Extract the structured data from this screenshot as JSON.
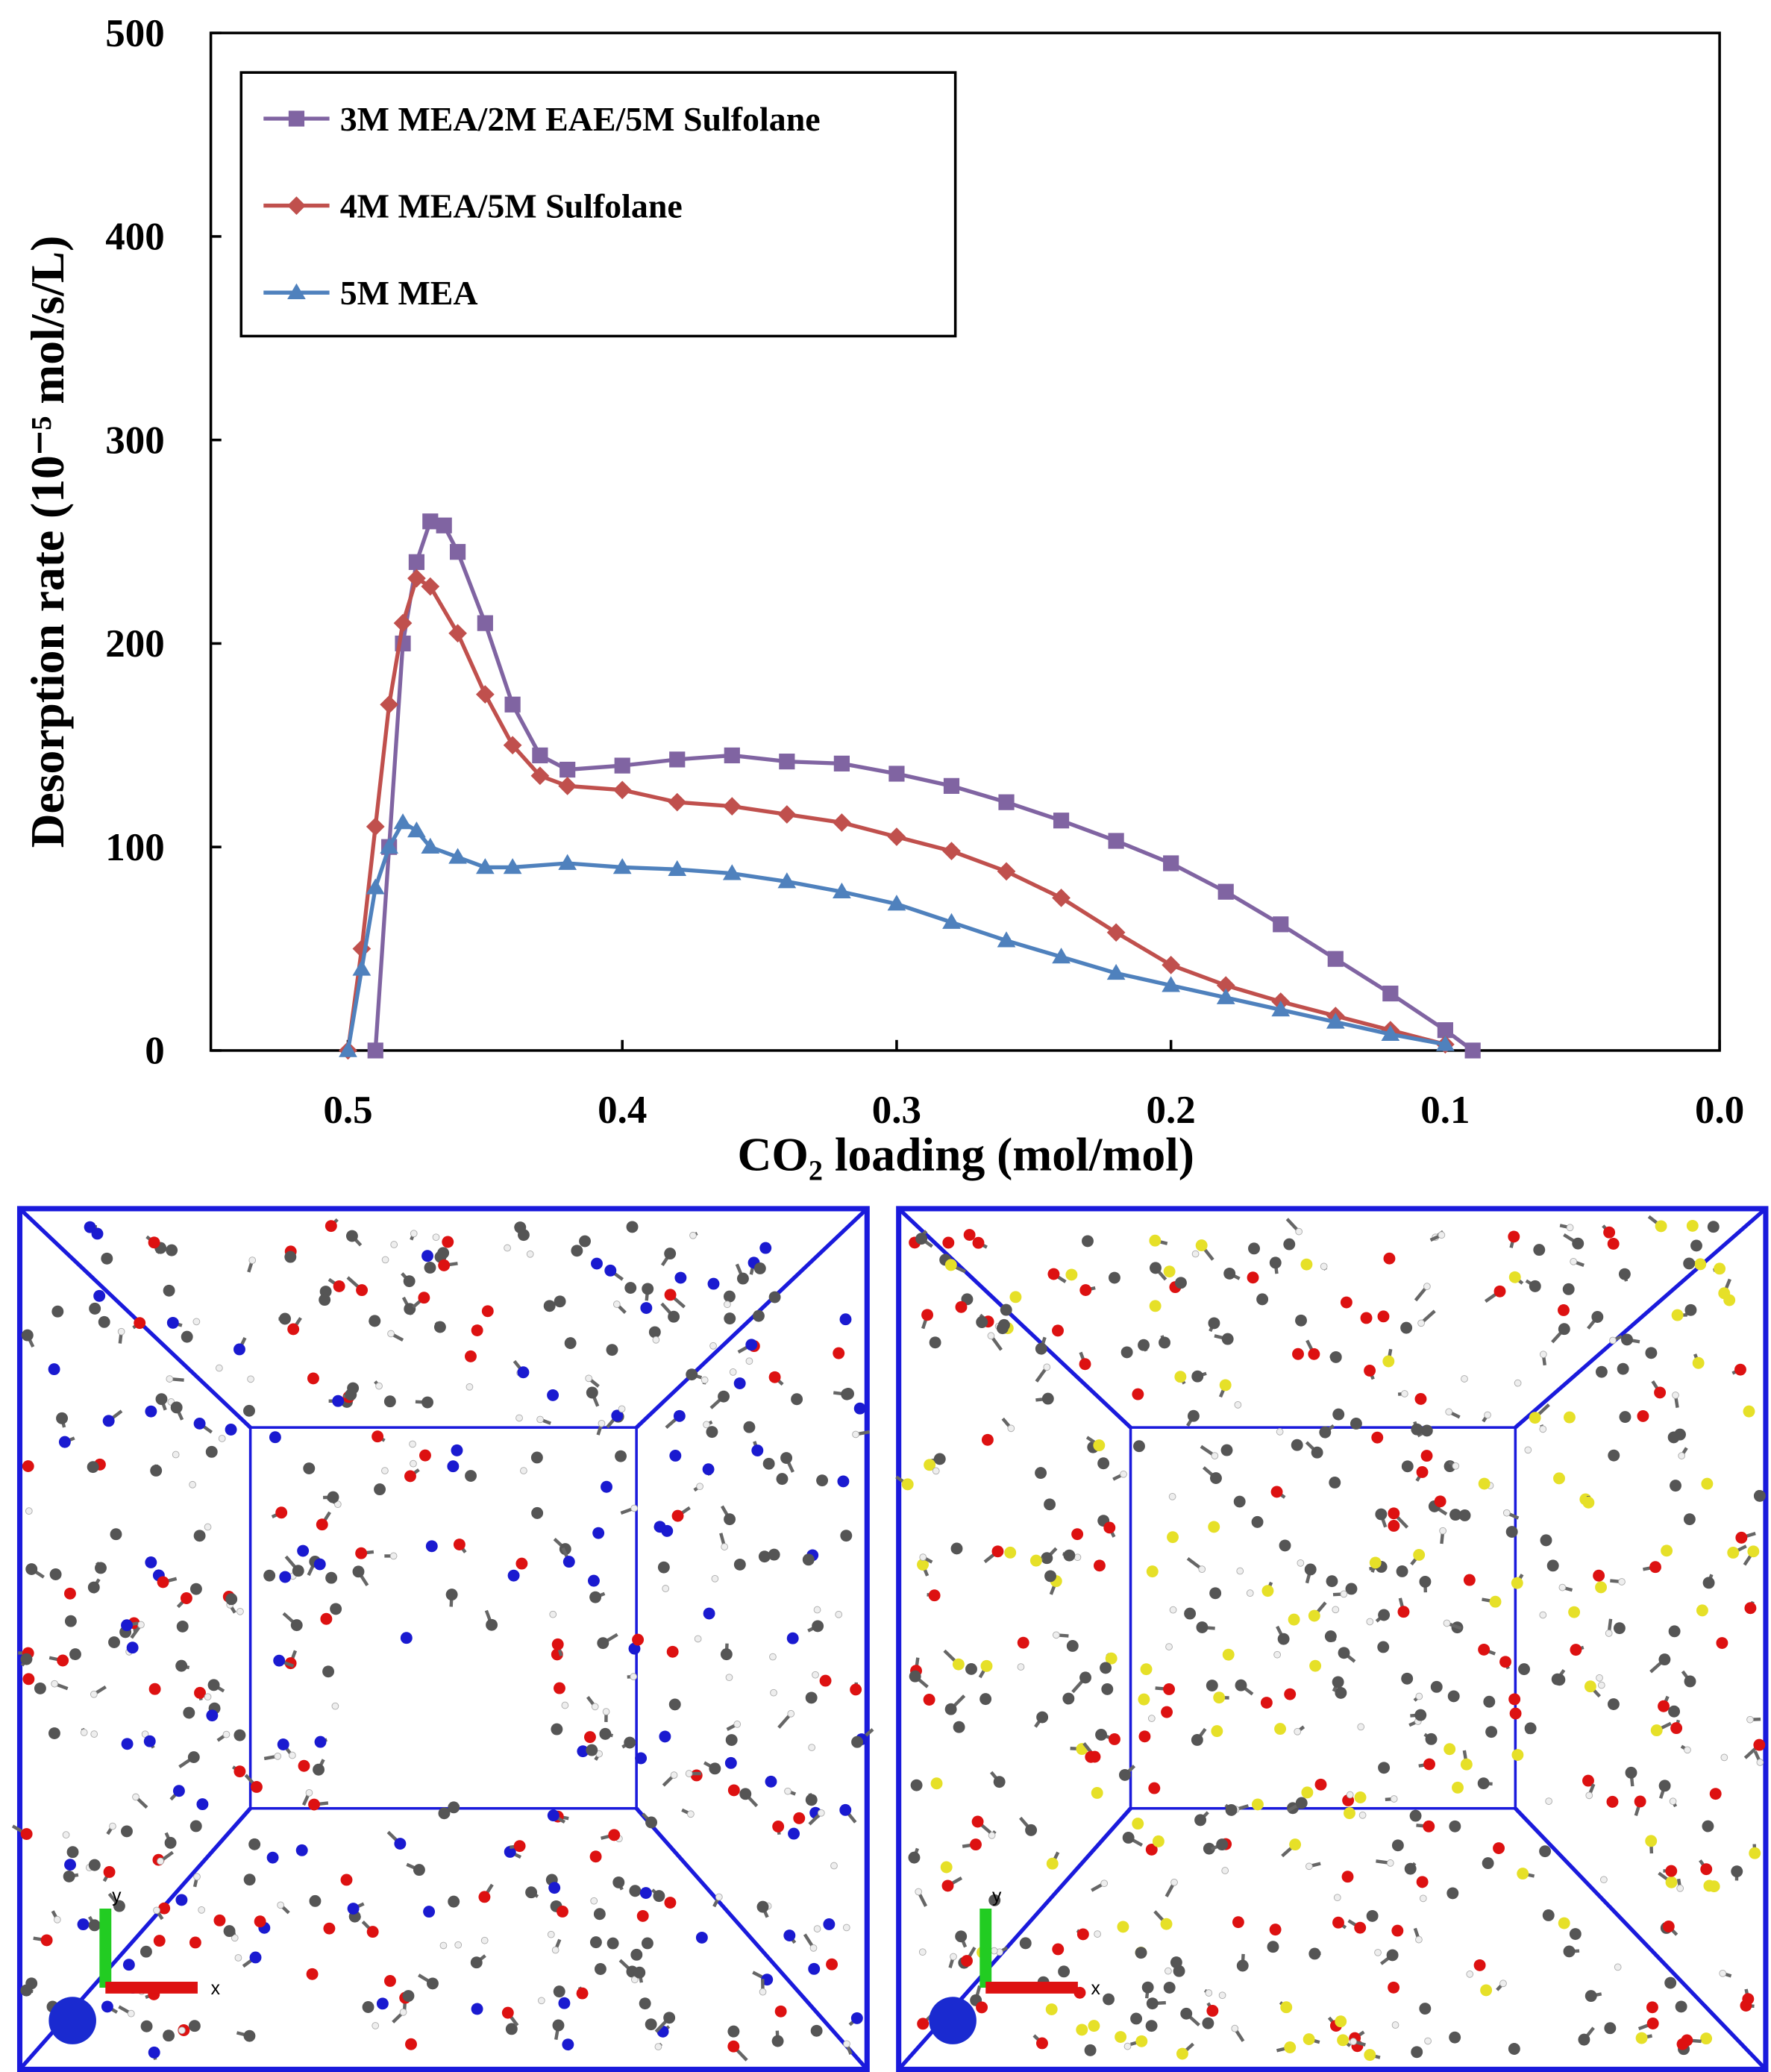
{
  "chart_data": {
    "type": "line",
    "x_label": "CO₂ loading (mol/mol)",
    "y_label": "Desorption rate (10⁻⁵ mol/s/L)",
    "xlim": [
      0.55,
      0
    ],
    "xticks": [
      0.5,
      0.4,
      0.3,
      0.2,
      0.1,
      {
        "value": 0,
        "label": "0.0"
      }
    ],
    "ylim": [
      0,
      500
    ],
    "yticks": [
      0,
      100,
      200,
      300,
      400,
      500
    ],
    "legend": "upper left",
    "series": [
      {
        "name": "3M MEA/2M EAE/5M Sulfolane",
        "color": "#8064a2",
        "marker": "square",
        "x": [
          0.49,
          0.485,
          0.48,
          0.475,
          0.47,
          0.465,
          0.46,
          0.45,
          0.44,
          0.43,
          0.42,
          0.4,
          0.38,
          0.36,
          0.34,
          0.32,
          0.3,
          0.28,
          0.26,
          0.24,
          0.22,
          0.2,
          0.18,
          0.16,
          0.14,
          0.12,
          0.1,
          0.09
        ],
        "values": [
          0,
          100,
          200,
          240,
          260,
          258,
          245,
          210,
          170,
          145,
          138,
          140,
          143,
          145,
          142,
          141,
          136,
          130,
          122,
          113,
          103,
          92,
          78,
          62,
          45,
          28,
          10,
          0
        ]
      },
      {
        "name": "4M MEA/5M Sulfolane",
        "color": "#c0504d",
        "marker": "diamond",
        "x": [
          0.5,
          0.495,
          0.49,
          0.485,
          0.48,
          0.475,
          0.47,
          0.46,
          0.45,
          0.44,
          0.43,
          0.42,
          0.4,
          0.38,
          0.36,
          0.34,
          0.32,
          0.3,
          0.28,
          0.26,
          0.24,
          0.22,
          0.2,
          0.18,
          0.16,
          0.14,
          0.12,
          0.1
        ],
        "values": [
          0,
          50,
          110,
          170,
          210,
          232,
          228,
          205,
          175,
          150,
          135,
          130,
          128,
          122,
          120,
          116,
          112,
          105,
          98,
          88,
          75,
          58,
          42,
          32,
          24,
          17,
          10,
          3
        ]
      },
      {
        "name": "5M MEA",
        "color": "#4f81bd",
        "marker": "triangle",
        "x": [
          0.5,
          0.495,
          0.49,
          0.485,
          0.48,
          0.475,
          0.47,
          0.46,
          0.45,
          0.44,
          0.42,
          0.4,
          0.38,
          0.36,
          0.34,
          0.32,
          0.3,
          0.28,
          0.26,
          0.24,
          0.22,
          0.2,
          0.18,
          0.16,
          0.14,
          0.12,
          0.1
        ],
        "values": [
          0,
          40,
          80,
          100,
          112,
          108,
          100,
          95,
          90,
          90,
          92,
          90,
          89,
          87,
          83,
          78,
          72,
          63,
          54,
          46,
          38,
          32,
          26,
          20,
          14,
          8,
          3
        ]
      }
    ]
  },
  "panels": [
    {
      "axes": [
        "x",
        "y"
      ]
    },
    {
      "axes": [
        "x",
        "y"
      ]
    }
  ]
}
